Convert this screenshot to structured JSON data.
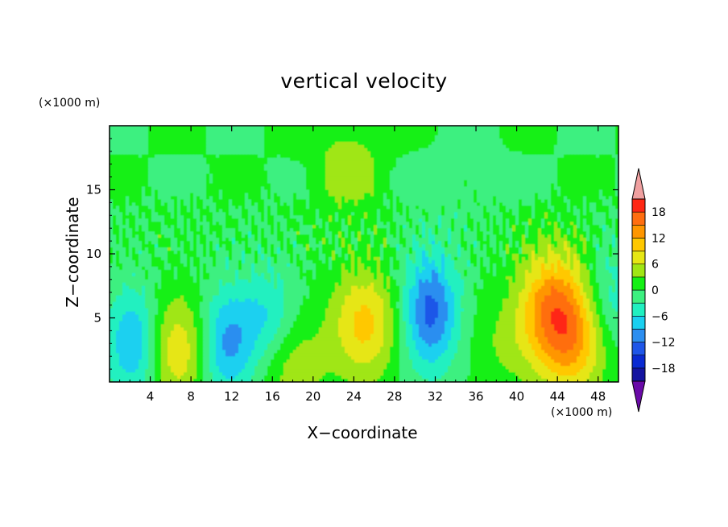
{
  "chart_data": {
    "type": "heatmap",
    "title": "vertical velocity",
    "xlabel": "X−coordinate",
    "ylabel": "Z−coordinate",
    "x_multiplier_label": "(×1000 m)",
    "y_multiplier_label": "(×1000 m)",
    "xlim": [
      0,
      50
    ],
    "ylim": [
      0,
      20
    ],
    "x_ticks": [
      4,
      8,
      12,
      16,
      20,
      24,
      28,
      32,
      36,
      40,
      44,
      48
    ],
    "y_ticks": [
      5,
      10,
      15
    ],
    "colorbar": {
      "levels": [
        -21,
        -18,
        -15,
        -12,
        -9,
        -6,
        -3,
        0,
        3,
        6,
        9,
        12,
        15,
        18,
        21
      ],
      "tick_labels": [
        "18",
        "12",
        "6",
        "0",
        "−6",
        "−12",
        "−18"
      ],
      "tick_values": [
        18,
        12,
        6,
        0,
        -6,
        -12,
        -18
      ],
      "colors": [
        "#6a0aa8",
        "#1414a0",
        "#0a2ad2",
        "#1f56e8",
        "#2c8ef0",
        "#1ad0f0",
        "#20f0c0",
        "#3cf080",
        "#14f014",
        "#a0e614",
        "#e6e614",
        "#ffc800",
        "#ff9600",
        "#ff6e10",
        "#ff2814",
        "#e61414",
        "#f0a0a0"
      ],
      "extend": "both"
    },
    "features": [
      {
        "x": 6.5,
        "z": 2.5,
        "value": 9,
        "sign": "updraft"
      },
      {
        "x": 2.5,
        "z": 3.0,
        "value": -10,
        "sign": "downdraft"
      },
      {
        "x": 11.5,
        "z": 3.0,
        "value": -10,
        "sign": "downdraft"
      },
      {
        "x": 15.5,
        "z": 5.0,
        "value": -6,
        "sign": "downdraft"
      },
      {
        "x": 18.0,
        "z": 1.2,
        "value": 5,
        "sign": "updraft"
      },
      {
        "x": 25.0,
        "z": 4.5,
        "value": 10,
        "sign": "updraft"
      },
      {
        "x": 31.5,
        "z": 5.5,
        "value": -13,
        "sign": "downdraft"
      },
      {
        "x": 39.0,
        "z": 3.0,
        "value": 3,
        "sign": "updraft"
      },
      {
        "x": 43.5,
        "z": 6.0,
        "value": 13,
        "sign": "updraft"
      },
      {
        "x": 45.5,
        "z": 3.0,
        "value": 10,
        "sign": "updraft"
      },
      {
        "x": 23.5,
        "z": 17.0,
        "value": 5,
        "sign": "updraft"
      },
      {
        "x": 49.5,
        "z": 6.5,
        "value": -5,
        "sign": "downdraft"
      }
    ]
  }
}
